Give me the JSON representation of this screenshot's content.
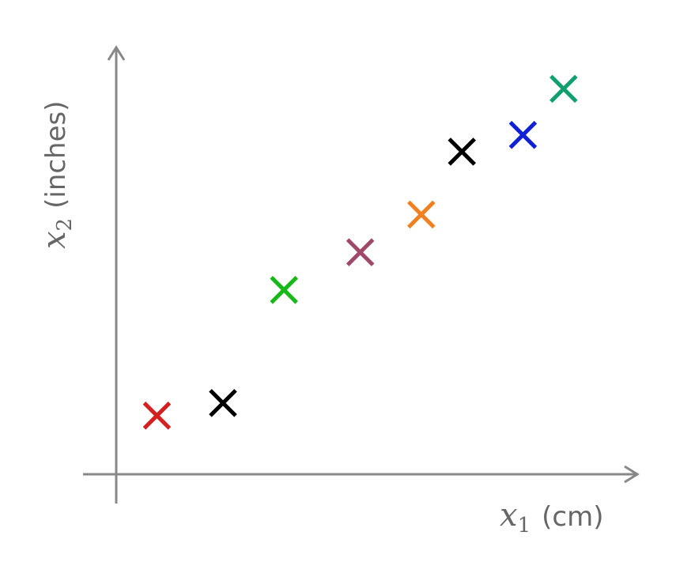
{
  "chart_data": {
    "type": "scatter",
    "x_label": {
      "variable": "x",
      "subscript": "1",
      "unit": "(cm)"
    },
    "y_label": {
      "variable": "x",
      "subscript": "2",
      "unit": "(inches)"
    },
    "xlim": [
      0,
      10
    ],
    "ylim": [
      0,
      10
    ],
    "x": [
      0.8,
      2.1,
      3.3,
      4.8,
      6.0,
      6.8,
      8.0,
      8.8
    ],
    "y": [
      1.4,
      1.7,
      4.4,
      5.3,
      6.2,
      7.7,
      8.1,
      9.2
    ],
    "colors": [
      "#d42020",
      "#000000",
      "#18b818",
      "#a0486a",
      "#f08020",
      "#000000",
      "#1020d8",
      "#10a070"
    ],
    "marker": "x"
  }
}
